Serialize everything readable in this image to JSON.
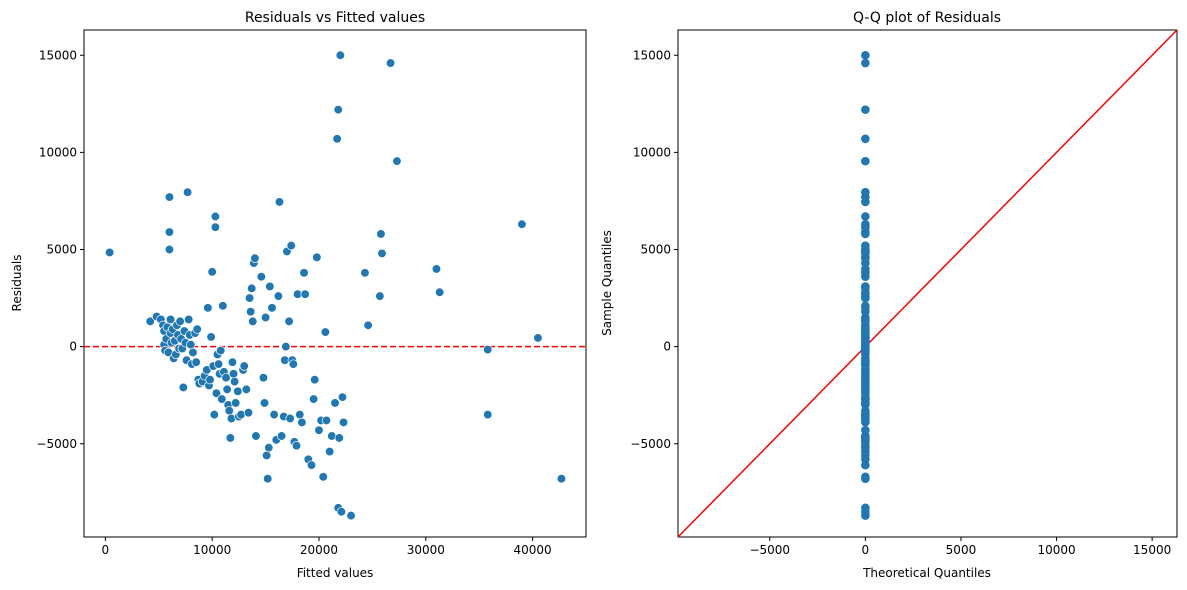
{
  "chart_data": [
    {
      "type": "scatter",
      "title": "Residuals vs Fitted values",
      "xlabel": "Fitted values",
      "ylabel": "Residuals",
      "xlim": [
        -2000,
        45000
      ],
      "ylim": [
        -9800,
        16300
      ],
      "xticks": [
        0,
        10000,
        20000,
        30000,
        40000
      ],
      "yticks": [
        -5000,
        0,
        5000,
        10000,
        15000
      ],
      "grid": false,
      "reference_line": {
        "y": 0,
        "style": "dashed",
        "color": "#ff0000"
      },
      "marker_color": "#1f77b4",
      "series": [
        {
          "points": [
            [
              400,
              4850
            ],
            [
              4200,
              1300
            ],
            [
              4800,
              1550
            ],
            [
              5200,
              1400
            ],
            [
              5400,
              1100
            ],
            [
              5500,
              800
            ],
            [
              5500,
              100
            ],
            [
              5600,
              -200
            ],
            [
              5700,
              400
            ],
            [
              5800,
              1000
            ],
            [
              5900,
              -300
            ],
            [
              6000,
              5000
            ],
            [
              6000,
              5900
            ],
            [
              6000,
              7700
            ],
            [
              6100,
              1400
            ],
            [
              6100,
              700
            ],
            [
              6200,
              200
            ],
            [
              6300,
              900
            ],
            [
              6400,
              -600
            ],
            [
              6500,
              300
            ],
            [
              6600,
              -400
            ],
            [
              6700,
              1100
            ],
            [
              6800,
              600
            ],
            [
              6900,
              -100
            ],
            [
              7000,
              1300
            ],
            [
              7100,
              400
            ],
            [
              7200,
              -100
            ],
            [
              7300,
              -2100
            ],
            [
              7400,
              800
            ],
            [
              7500,
              200
            ],
            [
              7600,
              -700
            ],
            [
              7700,
              7950
            ],
            [
              7800,
              1400
            ],
            [
              7900,
              600
            ],
            [
              8000,
              100
            ],
            [
              8100,
              -900
            ],
            [
              8200,
              -300
            ],
            [
              8400,
              700
            ],
            [
              8500,
              -800
            ],
            [
              8600,
              900
            ],
            [
              8700,
              -1700
            ],
            [
              8800,
              -1900
            ],
            [
              9100,
              -1800
            ],
            [
              9300,
              -1500
            ],
            [
              9500,
              -1200
            ],
            [
              9600,
              2000
            ],
            [
              9700,
              -2000
            ],
            [
              9800,
              -1700
            ],
            [
              9900,
              500
            ],
            [
              10000,
              3850
            ],
            [
              10100,
              -1000
            ],
            [
              10200,
              -3500
            ],
            [
              10300,
              6700
            ],
            [
              10300,
              6150
            ],
            [
              10400,
              -2400
            ],
            [
              10500,
              -400
            ],
            [
              10600,
              -900
            ],
            [
              10700,
              -1400
            ],
            [
              10800,
              -200
            ],
            [
              10900,
              -2700
            ],
            [
              11000,
              2100
            ],
            [
              11100,
              -1300
            ],
            [
              11300,
              -1600
            ],
            [
              11400,
              -2200
            ],
            [
              11500,
              -3000
            ],
            [
              11600,
              -3300
            ],
            [
              11700,
              -4700
            ],
            [
              11800,
              -3700
            ],
            [
              11900,
              -800
            ],
            [
              12000,
              -1400
            ],
            [
              12100,
              -1800
            ],
            [
              12200,
              -2900
            ],
            [
              12400,
              -2300
            ],
            [
              12500,
              -3600
            ],
            [
              12700,
              -3500
            ],
            [
              12900,
              -1200
            ],
            [
              13000,
              -1000
            ],
            [
              13200,
              -2200
            ],
            [
              13400,
              -3400
            ],
            [
              13500,
              2500
            ],
            [
              13600,
              1800
            ],
            [
              13700,
              3000
            ],
            [
              13800,
              1300
            ],
            [
              13900,
              4300
            ],
            [
              14000,
              4550
            ],
            [
              14100,
              -4600
            ],
            [
              14600,
              3600
            ],
            [
              14800,
              -1600
            ],
            [
              14900,
              -2900
            ],
            [
              15000,
              1500
            ],
            [
              15100,
              -5600
            ],
            [
              15200,
              -6800
            ],
            [
              15300,
              -5200
            ],
            [
              15400,
              3100
            ],
            [
              15600,
              2000
            ],
            [
              15800,
              -3500
            ],
            [
              16000,
              -4800
            ],
            [
              16200,
              2600
            ],
            [
              16300,
              7450
            ],
            [
              16500,
              -4600
            ],
            [
              16700,
              -3600
            ],
            [
              16800,
              -700
            ],
            [
              16900,
              0
            ],
            [
              17000,
              4900
            ],
            [
              17200,
              1300
            ],
            [
              17300,
              -3700
            ],
            [
              17400,
              5200
            ],
            [
              17500,
              -700
            ],
            [
              17600,
              -900
            ],
            [
              17700,
              -4900
            ],
            [
              17900,
              -5100
            ],
            [
              18000,
              2700
            ],
            [
              18200,
              -3500
            ],
            [
              18400,
              -3900
            ],
            [
              18600,
              3800
            ],
            [
              18700,
              2700
            ],
            [
              19000,
              -5800
            ],
            [
              19300,
              -6100
            ],
            [
              19500,
              -2700
            ],
            [
              19600,
              -1700
            ],
            [
              19800,
              4600
            ],
            [
              20000,
              -4300
            ],
            [
              20200,
              -3800
            ],
            [
              20400,
              -6700
            ],
            [
              20600,
              750
            ],
            [
              20700,
              -3800
            ],
            [
              21000,
              -5400
            ],
            [
              21200,
              -4600
            ],
            [
              21500,
              -2900
            ],
            [
              21700,
              10700
            ],
            [
              21800,
              12200
            ],
            [
              21800,
              -8300
            ],
            [
              21900,
              -4700
            ],
            [
              22000,
              15000
            ],
            [
              22100,
              -8500
            ],
            [
              22200,
              -2600
            ],
            [
              22300,
              -3900
            ],
            [
              23000,
              -8700
            ],
            [
              24300,
              3800
            ],
            [
              24600,
              1100
            ],
            [
              25700,
              2600
            ],
            [
              25800,
              5800
            ],
            [
              25900,
              4800
            ],
            [
              26700,
              14600
            ],
            [
              27300,
              9550
            ],
            [
              31000,
              4000
            ],
            [
              31300,
              2800
            ],
            [
              35800,
              -150
            ],
            [
              35800,
              -3500
            ],
            [
              39000,
              6300
            ],
            [
              40500,
              450
            ],
            [
              42700,
              -6800
            ]
          ]
        }
      ]
    },
    {
      "type": "scatter",
      "title": "Q-Q plot of Residuals",
      "xlabel": "Theoretical Quantiles",
      "ylabel": "Sample Quantiles",
      "xlim": [
        -9800,
        16300
      ],
      "ylim": [
        -9800,
        16300
      ],
      "xticks": [
        -5000,
        0,
        5000,
        10000,
        15000
      ],
      "yticks": [
        -5000,
        0,
        5000,
        10000,
        15000
      ],
      "grid": false,
      "reference_line": {
        "slope": 1,
        "intercept": 0,
        "style": "solid",
        "color": "#ff0000"
      },
      "marker_color": "#1f77b4",
      "series": [
        {
          "x": 0,
          "sample_values": [
            -8700,
            -8500,
            -8300,
            -6800,
            -6700,
            -6100,
            -5800,
            -5600,
            -5400,
            -5200,
            -5100,
            -4900,
            -4800,
            -4700,
            -4600,
            -4600,
            -4300,
            -3900,
            -3800,
            -3700,
            -3600,
            -3500,
            -3500,
            -3400,
            -3300,
            -3000,
            -2900,
            -2900,
            -2700,
            -2700,
            -2600,
            -2400,
            -2300,
            -2200,
            -2100,
            -2000,
            -1900,
            -1800,
            -1700,
            -1600,
            -1500,
            -1400,
            -1300,
            -1200,
            -1000,
            -900,
            -800,
            -700,
            -600,
            -400,
            -300,
            -200,
            -150,
            -100,
            0,
            100,
            200,
            300,
            400,
            450,
            500,
            600,
            700,
            750,
            800,
            900,
            1000,
            1100,
            1300,
            1400,
            1500,
            1800,
            2000,
            2100,
            2500,
            2600,
            2700,
            2800,
            3000,
            3100,
            3600,
            3800,
            3850,
            4000,
            4300,
            4550,
            4600,
            4800,
            4850,
            4900,
            5000,
            5200,
            5800,
            5900,
            6150,
            6300,
            6700,
            7450,
            7700,
            7950,
            9550,
            10700,
            12200,
            14600,
            15000
          ]
        }
      ]
    }
  ]
}
